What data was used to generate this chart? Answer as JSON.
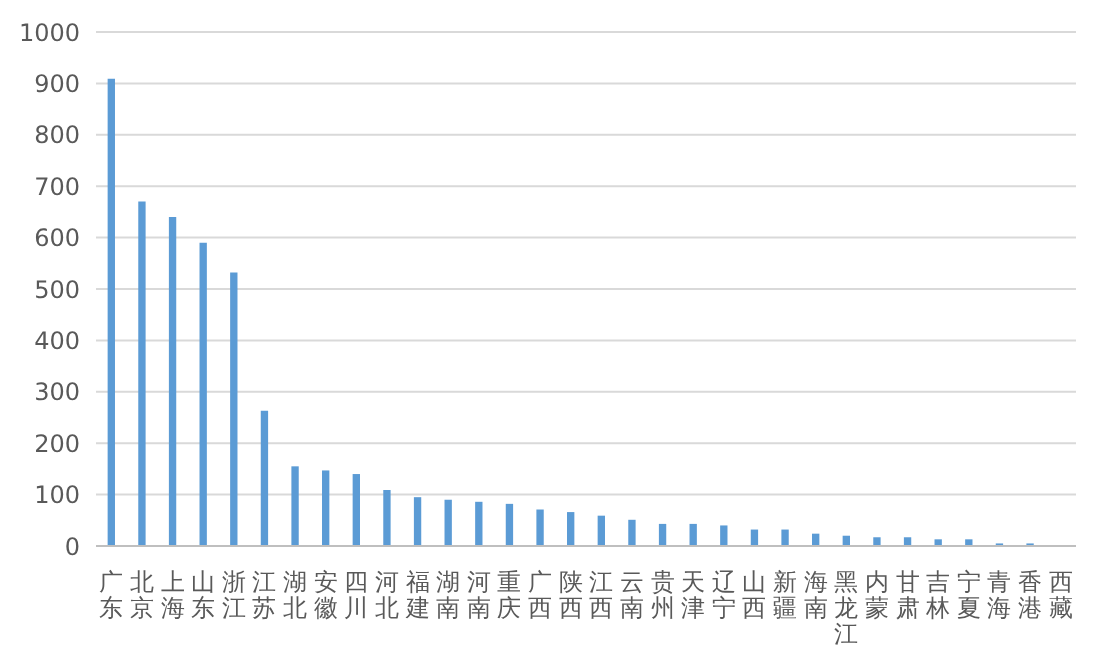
{
  "chart_data": {
    "type": "bar",
    "categories": [
      "广东",
      "北京",
      "上海",
      "山东",
      "浙江",
      "江苏",
      "湖北",
      "安徽",
      "四川",
      "河北",
      "福建",
      "湖南",
      "河南",
      "重庆",
      "广西",
      "陕西",
      "江西",
      "云南",
      "贵州",
      "天津",
      "辽宁",
      "山西",
      "新疆",
      "海南",
      "黑龙江",
      "内蒙",
      "甘肃",
      "吉林",
      "宁夏",
      "青海",
      "香港",
      "西藏"
    ],
    "values": [
      909,
      670,
      640,
      590,
      532,
      263,
      155,
      147,
      140,
      109,
      95,
      90,
      86,
      82,
      71,
      66,
      59,
      51,
      43,
      43,
      40,
      32,
      32,
      24,
      20,
      17,
      17,
      13,
      13,
      5,
      5,
      0
    ],
    "color": "#5b9bd5",
    "ylim": [
      0,
      1000
    ],
    "yticks": [
      0,
      100,
      200,
      300,
      400,
      500,
      600,
      700,
      800,
      900,
      1000
    ],
    "grid": "y"
  }
}
